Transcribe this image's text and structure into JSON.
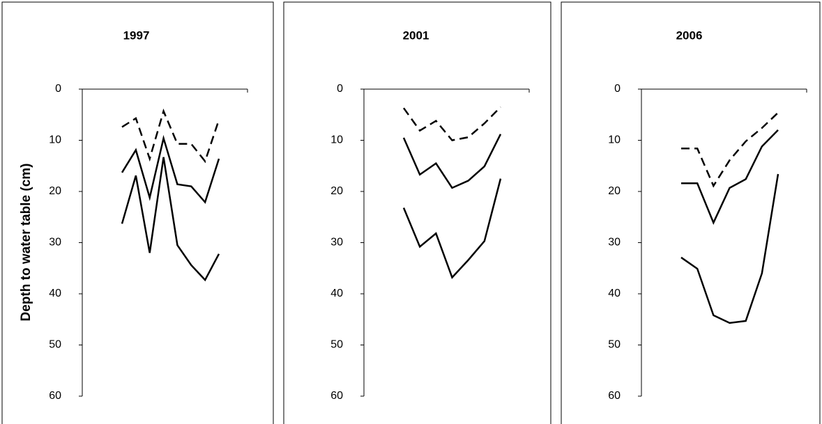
{
  "chart_data": [
    {
      "type": "line",
      "title": "1997",
      "ylabel": "Depth to water table (cm)",
      "categories": [
        null,
        null,
        null,
        null,
        null,
        null,
        null,
        null
      ],
      "ylim": [
        60,
        0
      ],
      "yticks": [
        0,
        10,
        20,
        30,
        40,
        50,
        60
      ],
      "series": [
        {
          "color": "#000000",
          "dashed": true,
          "values": [
            7.4,
            5.7,
            13.6,
            4.3,
            10.7,
            10.7,
            14.1,
            6.0
          ]
        },
        {
          "color": "#000000",
          "dashed": false,
          "values": [
            16.3,
            11.9,
            21.2,
            9.6,
            18.6,
            19.0,
            22.1,
            13.6
          ]
        },
        {
          "color": "#000000",
          "dashed": false,
          "values": [
            26.3,
            16.9,
            32.0,
            13.3,
            30.5,
            34.4,
            37.3,
            32.2
          ]
        }
      ]
    },
    {
      "type": "line",
      "title": "2001",
      "categories": [
        null,
        null,
        null,
        null,
        null,
        null,
        null
      ],
      "ylim": [
        60,
        0
      ],
      "yticks": [
        0,
        10,
        20,
        30,
        40,
        50,
        60
      ],
      "series": [
        {
          "color": "#000000",
          "dashed": true,
          "values": [
            3.7,
            8.1,
            6.2,
            10.0,
            9.4,
            6.7,
            3.5
          ]
        },
        {
          "color": "#000000",
          "dashed": false,
          "values": [
            9.5,
            16.7,
            14.5,
            19.3,
            17.9,
            15.1,
            8.8
          ]
        },
        {
          "color": "#000000",
          "dashed": false,
          "values": [
            23.2,
            30.8,
            28.2,
            36.8,
            33.4,
            29.7,
            17.5
          ]
        }
      ]
    },
    {
      "type": "line",
      "title": "2006",
      "categories": [
        null,
        null,
        null,
        null,
        null,
        null,
        null
      ],
      "ylim": [
        60,
        0
      ],
      "yticks": [
        0,
        10,
        20,
        30,
        40,
        50,
        60
      ],
      "series": [
        {
          "color": "#000000",
          "dashed": true,
          "values": [
            11.6,
            11.6,
            18.9,
            13.9,
            10.2,
            7.6,
            4.6
          ]
        },
        {
          "color": "#000000",
          "dashed": false,
          "values": [
            18.4,
            18.4,
            26.1,
            19.3,
            17.6,
            11.2,
            8.0
          ]
        },
        {
          "color": "#000000",
          "dashed": false,
          "values": [
            32.9,
            35.1,
            44.2,
            45.7,
            45.3,
            36.0,
            16.6
          ]
        }
      ]
    }
  ]
}
